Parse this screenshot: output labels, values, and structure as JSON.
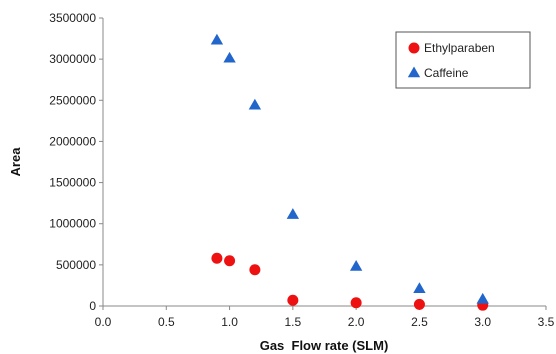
{
  "chart_data": {
    "type": "scatter",
    "title": "",
    "xlabel": "Gas  Flow rate (SLM)",
    "ylabel": "Area",
    "xlim": [
      0.0,
      3.5
    ],
    "ylim": [
      0,
      3500000
    ],
    "x_ticks": [
      "0.0",
      "0.5",
      "1.0",
      "1.5",
      "2.0",
      "2.5",
      "3.0",
      "3.5"
    ],
    "y_ticks": [
      "0",
      "500000",
      "1000000",
      "1500000",
      "2000000",
      "2500000",
      "3000000",
      "3500000"
    ],
    "grid": false,
    "legend_position": "top-right",
    "series": [
      {
        "name": "Ethylparaben",
        "marker": "circle",
        "color": "#ee1111",
        "points": [
          {
            "x": 0.9,
            "y": 580000
          },
          {
            "x": 1.0,
            "y": 550000
          },
          {
            "x": 1.2,
            "y": 440000
          },
          {
            "x": 1.5,
            "y": 70000
          },
          {
            "x": 2.0,
            "y": 40000
          },
          {
            "x": 2.5,
            "y": 20000
          },
          {
            "x": 3.0,
            "y": 10000
          }
        ]
      },
      {
        "name": "Caffeine",
        "marker": "triangle",
        "color": "#2266cc",
        "points": [
          {
            "x": 0.9,
            "y": 3230000
          },
          {
            "x": 1.0,
            "y": 3010000
          },
          {
            "x": 1.2,
            "y": 2440000
          },
          {
            "x": 1.5,
            "y": 1110000
          },
          {
            "x": 2.0,
            "y": 480000
          },
          {
            "x": 2.5,
            "y": 210000
          },
          {
            "x": 3.0,
            "y": 80000
          }
        ]
      }
    ]
  }
}
